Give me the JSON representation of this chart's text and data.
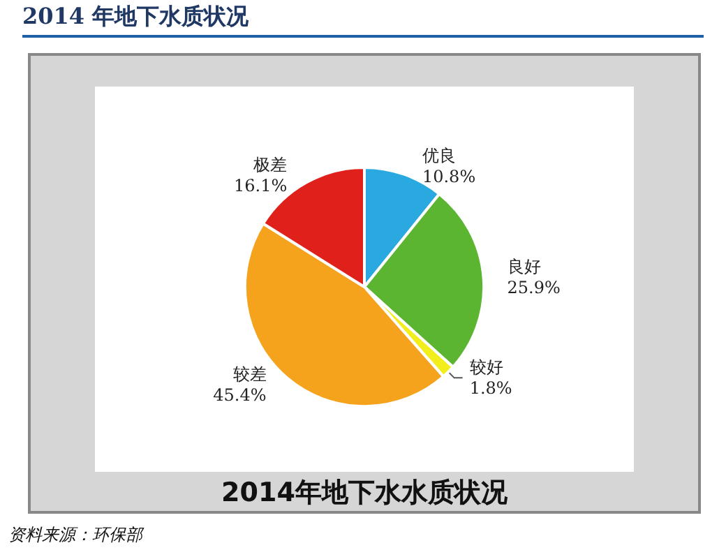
{
  "chart_data": {
    "type": "pie",
    "title": "2014 年地下水质状况",
    "categories": [
      "优良",
      "良好",
      "较好",
      "较差",
      "极差"
    ],
    "values": [
      10.8,
      25.9,
      1.8,
      45.4,
      16.1
    ],
    "value_labels": [
      "10.8%",
      "25.9%",
      "1.8%",
      "45.4%",
      "16.1%"
    ],
    "colors": [
      "#29a9e0",
      "#5cb531",
      "#f2ee1c",
      "#f5a21d",
      "#e0201b"
    ],
    "legend": false,
    "annotations": [
      "2014年地下水水质状况",
      "资料来源：环保部"
    ]
  }
}
